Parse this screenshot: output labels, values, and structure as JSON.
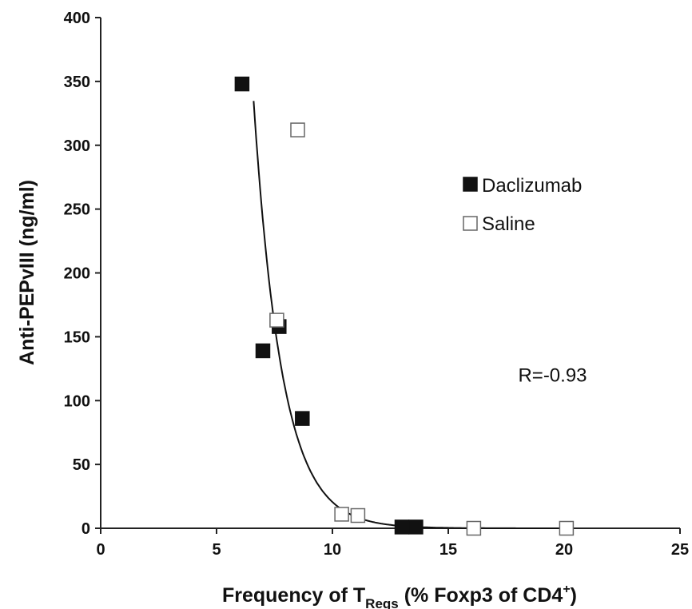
{
  "chart_data": {
    "type": "scatter",
    "xlabel": {
      "main": "Frequency of T",
      "sub": "Regs",
      "rest": " (% Foxp3 of CD4",
      "sup": "+",
      "close": ")"
    },
    "ylabel": "Anti-PEPvIII (ng/ml)",
    "xlim": [
      0,
      25
    ],
    "ylim": [
      0,
      400
    ],
    "xticks": [
      0,
      5,
      10,
      15,
      20,
      25
    ],
    "yticks": [
      0,
      50,
      100,
      150,
      200,
      250,
      300,
      350,
      400
    ],
    "grid": false,
    "legend_position": "right",
    "series": [
      {
        "name": "Daclizumab",
        "marker": "filled-square",
        "color": "#111111",
        "points": [
          {
            "x": 6.1,
            "y": 348
          },
          {
            "x": 7.0,
            "y": 139
          },
          {
            "x": 7.7,
            "y": 158
          },
          {
            "x": 8.7,
            "y": 86
          },
          {
            "x": 13.0,
            "y": 1
          },
          {
            "x": 13.6,
            "y": 1
          }
        ]
      },
      {
        "name": "Saline",
        "marker": "open-square",
        "color": "#666666",
        "points": [
          {
            "x": 8.5,
            "y": 312
          },
          {
            "x": 7.6,
            "y": 163
          },
          {
            "x": 10.4,
            "y": 11
          },
          {
            "x": 11.1,
            "y": 10
          },
          {
            "x": 16.1,
            "y": 0
          },
          {
            "x": 20.1,
            "y": 0
          }
        ]
      }
    ],
    "trendline": {
      "type": "exponential-decay",
      "x_from": 6.6,
      "x_to": 20.0,
      "equation": {
        "a": 75000,
        "b": 0.82
      }
    },
    "annotations": [
      {
        "text": "R=-0.93",
        "x": 19.5,
        "y": 120
      }
    ]
  }
}
